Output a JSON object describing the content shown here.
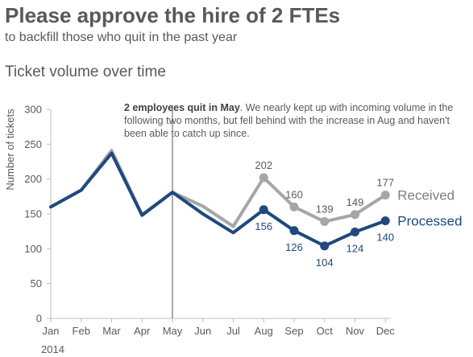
{
  "header": {
    "title": "Please approve the hire of 2 FTEs",
    "subtitle": "to backfill those who quit in the past year"
  },
  "chart_data": {
    "type": "line",
    "title": "Ticket volume over time",
    "ylabel": "Number of tickets",
    "xlabel": "",
    "year_label": "2014",
    "categories": [
      "Jan",
      "Feb",
      "Mar",
      "Apr",
      "May",
      "Jun",
      "Jul",
      "Aug",
      "Sep",
      "Oct",
      "Nov",
      "Dec"
    ],
    "ylim": [
      0,
      300
    ],
    "yticks": [
      0,
      50,
      100,
      150,
      200,
      250,
      300
    ],
    "grid": false,
    "series": [
      {
        "name": "Received",
        "color": "#a6a6a6",
        "values": [
          160,
          184,
          241,
          149,
          181,
          161,
          132,
          202,
          160,
          139,
          149,
          177
        ],
        "labeled_from_index": 7
      },
      {
        "name": "Processed",
        "color": "#1f497d",
        "values": [
          160,
          184,
          237,
          148,
          181,
          150,
          123,
          156,
          126,
          104,
          124,
          140
        ],
        "labeled_from_index": 7
      }
    ],
    "annotation": {
      "at_category": "May",
      "bold_text": "2 employees quit in May",
      "text": ". We nearly kept up with incoming volume in the following two months, but fell behind with the increase in Aug and haven't been able to catch up since."
    }
  }
}
